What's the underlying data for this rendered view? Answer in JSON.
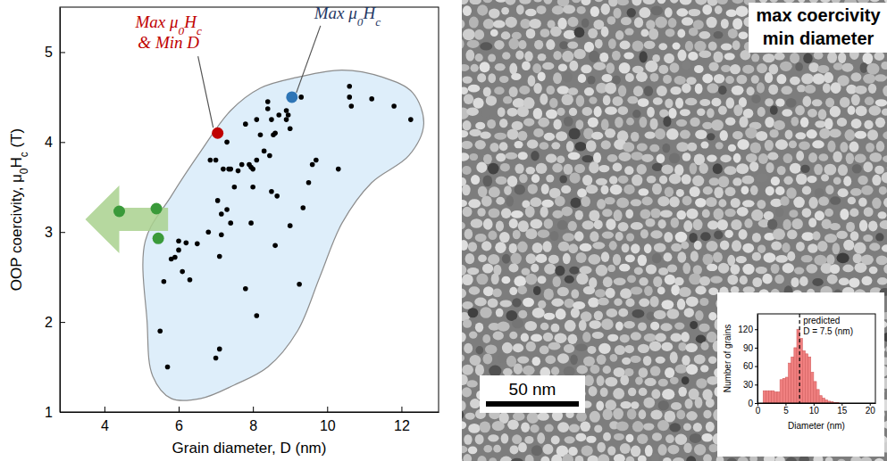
{
  "chart_data": [
    {
      "type": "scatter",
      "x_label": "Grain diameter, D (nm)",
      "y_label": "OOP coercivity, μ0Hc (T)",
      "xlim": [
        2.8,
        13
      ],
      "xticks": [
        4,
        6,
        8,
        10,
        12
      ],
      "ylim": [
        1,
        5.5
      ],
      "yticks": [
        1,
        2,
        3,
        4,
        5
      ],
      "grid": false,
      "region": {
        "color": "#deeefa",
        "x": [
          5.1,
          5.8,
          6.6,
          7.4,
          8.2,
          9.2,
          10.4,
          11.5,
          12.3,
          12.6,
          12.2,
          11.2,
          10.4,
          9.8,
          9.2,
          8.4,
          7.5,
          6.6,
          5.8,
          5.3,
          5.15
        ],
        "y": [
          2.9,
          3.4,
          3.9,
          4.35,
          4.6,
          4.72,
          4.8,
          4.72,
          4.55,
          4.2,
          3.85,
          3.55,
          3.1,
          2.5,
          1.9,
          1.5,
          1.3,
          1.15,
          1.15,
          1.4,
          2.0
        ]
      },
      "series": [
        {
          "color": "#000000",
          "marker": "dot",
          "x": [
            10.6,
            10.6,
            10.65,
            11.2,
            11.8,
            12.25,
            9.3,
            8.9,
            8.9,
            8.7,
            8.5,
            8.4,
            8.4,
            8.6,
            8.55,
            8.2,
            8.1,
            7.8,
            8.3,
            8.45,
            8.1,
            7.9,
            7.95,
            8.0,
            7.7,
            7.6,
            7.4,
            7.2,
            7.0,
            6.85,
            7.3,
            7.35,
            7.5,
            7.3,
            7.4,
            7.05,
            7.15,
            6.8,
            6.5,
            6.2,
            6.0,
            6.1,
            5.9,
            5.8,
            6.3,
            5.6,
            5.5,
            5.7,
            7.0,
            7.1,
            7.1,
            7.8,
            8.1,
            8.6,
            8.5,
            8.65,
            9.0,
            9.25,
            9.35,
            9.6,
            9.7,
            9.5,
            10.3,
            6.0,
            7.95,
            8.0,
            7.15,
            9.0,
            8.95
          ],
          "values": [
            4.62,
            4.5,
            4.4,
            4.48,
            4.4,
            4.25,
            4.5,
            4.35,
            4.25,
            4.3,
            4.25,
            4.45,
            4.37,
            4.1,
            4.08,
            4.08,
            4.25,
            4.2,
            3.9,
            3.85,
            3.8,
            3.75,
            3.72,
            3.7,
            3.75,
            3.68,
            3.7,
            3.7,
            3.8,
            3.8,
            4.0,
            3.7,
            3.5,
            3.25,
            3.1,
            3.35,
            3.2,
            3.0,
            2.87,
            2.88,
            2.8,
            2.56,
            2.72,
            2.7,
            2.47,
            2.45,
            1.9,
            1.5,
            1.6,
            1.7,
            2.73,
            2.37,
            2.07,
            2.85,
            3.45,
            3.4,
            3.07,
            2.42,
            3.27,
            3.75,
            3.8,
            3.55,
            3.7,
            2.9,
            3.1,
            3.5,
            2.97,
            4.15,
            4.3
          ]
        },
        {
          "color": "#c00000",
          "marker": "circle",
          "x": [
            7.05
          ],
          "values": [
            4.1
          ]
        },
        {
          "color": "#2e75b6",
          "marker": "circle",
          "x": [
            9.05
          ],
          "values": [
            4.5
          ]
        },
        {
          "color": "#3a9a3a",
          "marker": "circle",
          "x": [
            4.4,
            5.4,
            5.45
          ],
          "values": [
            3.23,
            3.26,
            2.93
          ]
        }
      ],
      "annotations": [
        {
          "text": [
            "Max μ0Hc",
            "& Min D"
          ],
          "color": "#c00000"
        },
        {
          "text": [
            "Max μ0Hc"
          ],
          "color": "#1f3864"
        }
      ]
    },
    {
      "type": "histogram",
      "x_label": "Diameter (nm)",
      "y_label": "Number of grains",
      "color": "#f08080",
      "xlim": [
        0,
        21
      ],
      "xticks": [
        0,
        5,
        10,
        15,
        20
      ],
      "ylim": [
        0,
        145
      ],
      "yticks": [
        0,
        30,
        60,
        90,
        120
      ],
      "grid": false,
      "bins": [
        1,
        1.5,
        2,
        2.5,
        3,
        3.5,
        4,
        4.5,
        5,
        5.5,
        6,
        6.5,
        7,
        7.5,
        8,
        8.5,
        9,
        9.5,
        10,
        10.5,
        11,
        11.5,
        12,
        12.5,
        13,
        13.5,
        14,
        14.5,
        15
      ],
      "values": [
        20,
        20,
        20,
        20,
        18,
        18,
        38,
        40,
        42,
        65,
        75,
        90,
        120,
        105,
        85,
        80,
        75,
        50,
        35,
        22,
        12,
        8,
        5,
        3,
        2,
        1,
        1,
        0
      ],
      "vline": {
        "value": 7.5,
        "line_style": "dashed",
        "label": [
          "predicted",
          "D = 7.5 (nm)"
        ]
      }
    }
  ],
  "image": {
    "label": [
      "max coercivity",
      "min diameter"
    ],
    "scale_bar": "50 nm"
  }
}
